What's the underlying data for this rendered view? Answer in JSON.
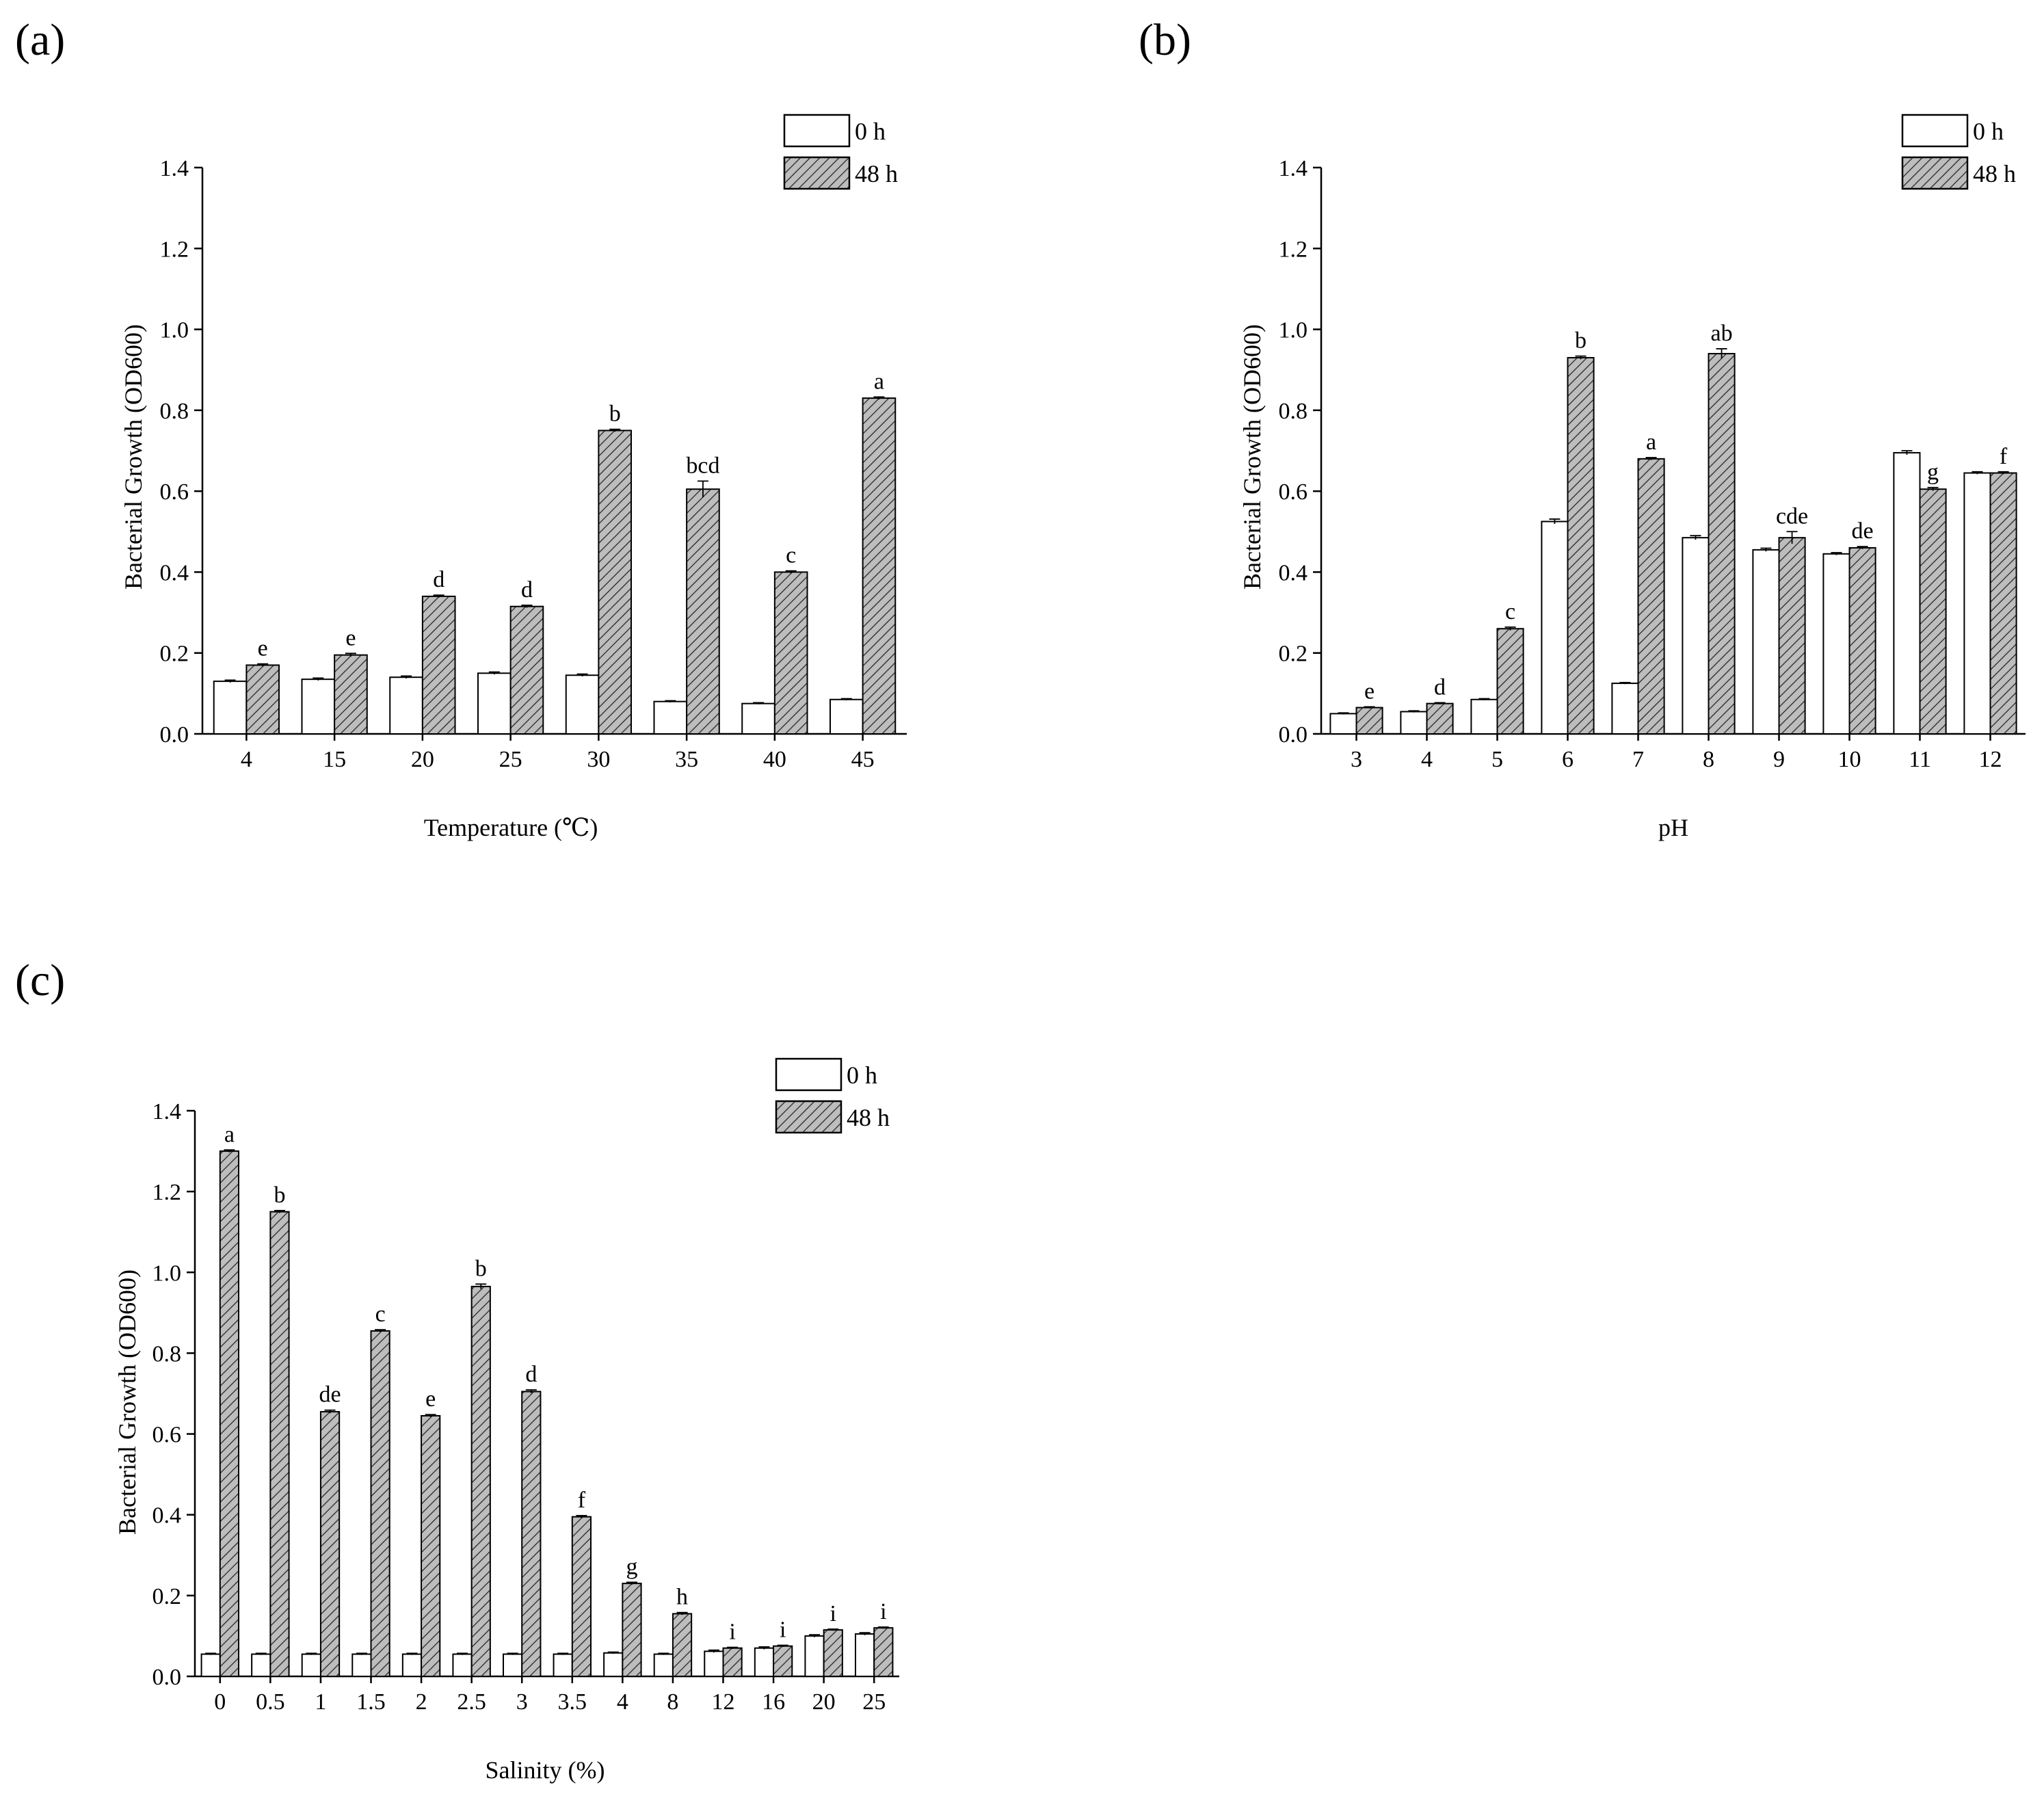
{
  "colors": {
    "bar_0h": "#ffffff",
    "bar_48h": "#bdbdbd",
    "hatch_line": "#3a3a3a",
    "axis": "#000000"
  },
  "chart_data": [
    {
      "panel": "(a)",
      "type": "bar",
      "xlabel": "Temperature (℃)",
      "ylabel": "Bacterial Growth (OD600)",
      "ylim": [
        0,
        1.4
      ],
      "yticks": [
        "0.0",
        "0.2",
        "0.4",
        "0.6",
        "0.8",
        "1.0",
        "1.2",
        "1.4"
      ],
      "legend": [
        "0 h",
        "48 h"
      ],
      "legend_position": "top-right",
      "categories": [
        "4",
        "15",
        "20",
        "25",
        "30",
        "35",
        "40",
        "45"
      ],
      "series": [
        {
          "name": "0 h",
          "values": [
            0.13,
            0.135,
            0.14,
            0.15,
            0.145,
            0.08,
            0.075,
            0.085
          ],
          "errors": [
            0.003,
            0.003,
            0.003,
            0.003,
            0.003,
            0.002,
            0.002,
            0.002
          ]
        },
        {
          "name": "48 h",
          "values": [
            0.17,
            0.195,
            0.34,
            0.315,
            0.75,
            0.605,
            0.4,
            0.83
          ],
          "errors": [
            0.003,
            0.004,
            0.003,
            0.003,
            0.003,
            0.02,
            0.003,
            0.003
          ]
        }
      ],
      "significance": [
        "e",
        "e",
        "d",
        "d",
        "b",
        "bcd",
        "c",
        "a"
      ]
    },
    {
      "panel": "(b)",
      "type": "bar",
      "xlabel": "pH",
      "ylabel": "Bacterial Growth (OD600)",
      "ylim": [
        0,
        1.4
      ],
      "yticks": [
        "0.0",
        "0.2",
        "0.4",
        "0.6",
        "0.8",
        "1.0",
        "1.2",
        "1.4"
      ],
      "legend": [
        "0 h",
        "48 h"
      ],
      "legend_position": "top-right",
      "categories": [
        "3",
        "4",
        "5",
        "6",
        "7",
        "8",
        "9",
        "10",
        "11",
        "12"
      ],
      "series": [
        {
          "name": "0 h",
          "values": [
            0.05,
            0.055,
            0.085,
            0.525,
            0.125,
            0.485,
            0.455,
            0.445,
            0.695,
            0.645
          ],
          "errors": [
            0.002,
            0.002,
            0.002,
            0.006,
            0.002,
            0.005,
            0.004,
            0.003,
            0.005,
            0.003
          ]
        },
        {
          "name": "48 h",
          "values": [
            0.065,
            0.075,
            0.26,
            0.93,
            0.68,
            0.94,
            0.485,
            0.46,
            0.605,
            0.645
          ],
          "errors": [
            0.002,
            0.002,
            0.004,
            0.004,
            0.003,
            0.012,
            0.015,
            0.003,
            0.004,
            0.003
          ]
        }
      ],
      "significance": [
        "e",
        "d",
        "c",
        "b",
        "a",
        "ab",
        "cde",
        "de",
        "g",
        "f"
      ]
    },
    {
      "panel": "(c)",
      "type": "bar",
      "xlabel": "Salinity (%)",
      "ylabel": "Bacterial Growth (OD600)",
      "ylim": [
        0,
        1.4
      ],
      "yticks": [
        "0.0",
        "0.2",
        "0.4",
        "0.6",
        "0.8",
        "1.0",
        "1.2",
        "1.4"
      ],
      "legend": [
        "0 h",
        "48 h"
      ],
      "legend_position": "top-right",
      "categories": [
        "0",
        "0.5",
        "1",
        "1.5",
        "2",
        "2.5",
        "3",
        "3.5",
        "4",
        "8",
        "12",
        "16",
        "20",
        "25"
      ],
      "series": [
        {
          "name": "0 h",
          "values": [
            0.055,
            0.055,
            0.055,
            0.055,
            0.055,
            0.055,
            0.055,
            0.055,
            0.058,
            0.055,
            0.062,
            0.07,
            0.1,
            0.105
          ],
          "errors": [
            0.002,
            0.002,
            0.002,
            0.002,
            0.002,
            0.002,
            0.002,
            0.002,
            0.002,
            0.002,
            0.003,
            0.003,
            0.003,
            0.003
          ]
        },
        {
          "name": "48 h",
          "values": [
            1.3,
            1.15,
            0.655,
            0.855,
            0.645,
            0.965,
            0.705,
            0.395,
            0.23,
            0.155,
            0.07,
            0.075,
            0.115,
            0.12
          ],
          "errors": [
            0.003,
            0.003,
            0.004,
            0.003,
            0.003,
            0.006,
            0.004,
            0.003,
            0.003,
            0.003,
            0.002,
            0.002,
            0.002,
            0.002
          ]
        }
      ],
      "significance": [
        "a",
        "b",
        "de",
        "c",
        "e",
        "b",
        "d",
        "f",
        "g",
        "h",
        "i",
        "i",
        "i",
        "i"
      ]
    }
  ]
}
